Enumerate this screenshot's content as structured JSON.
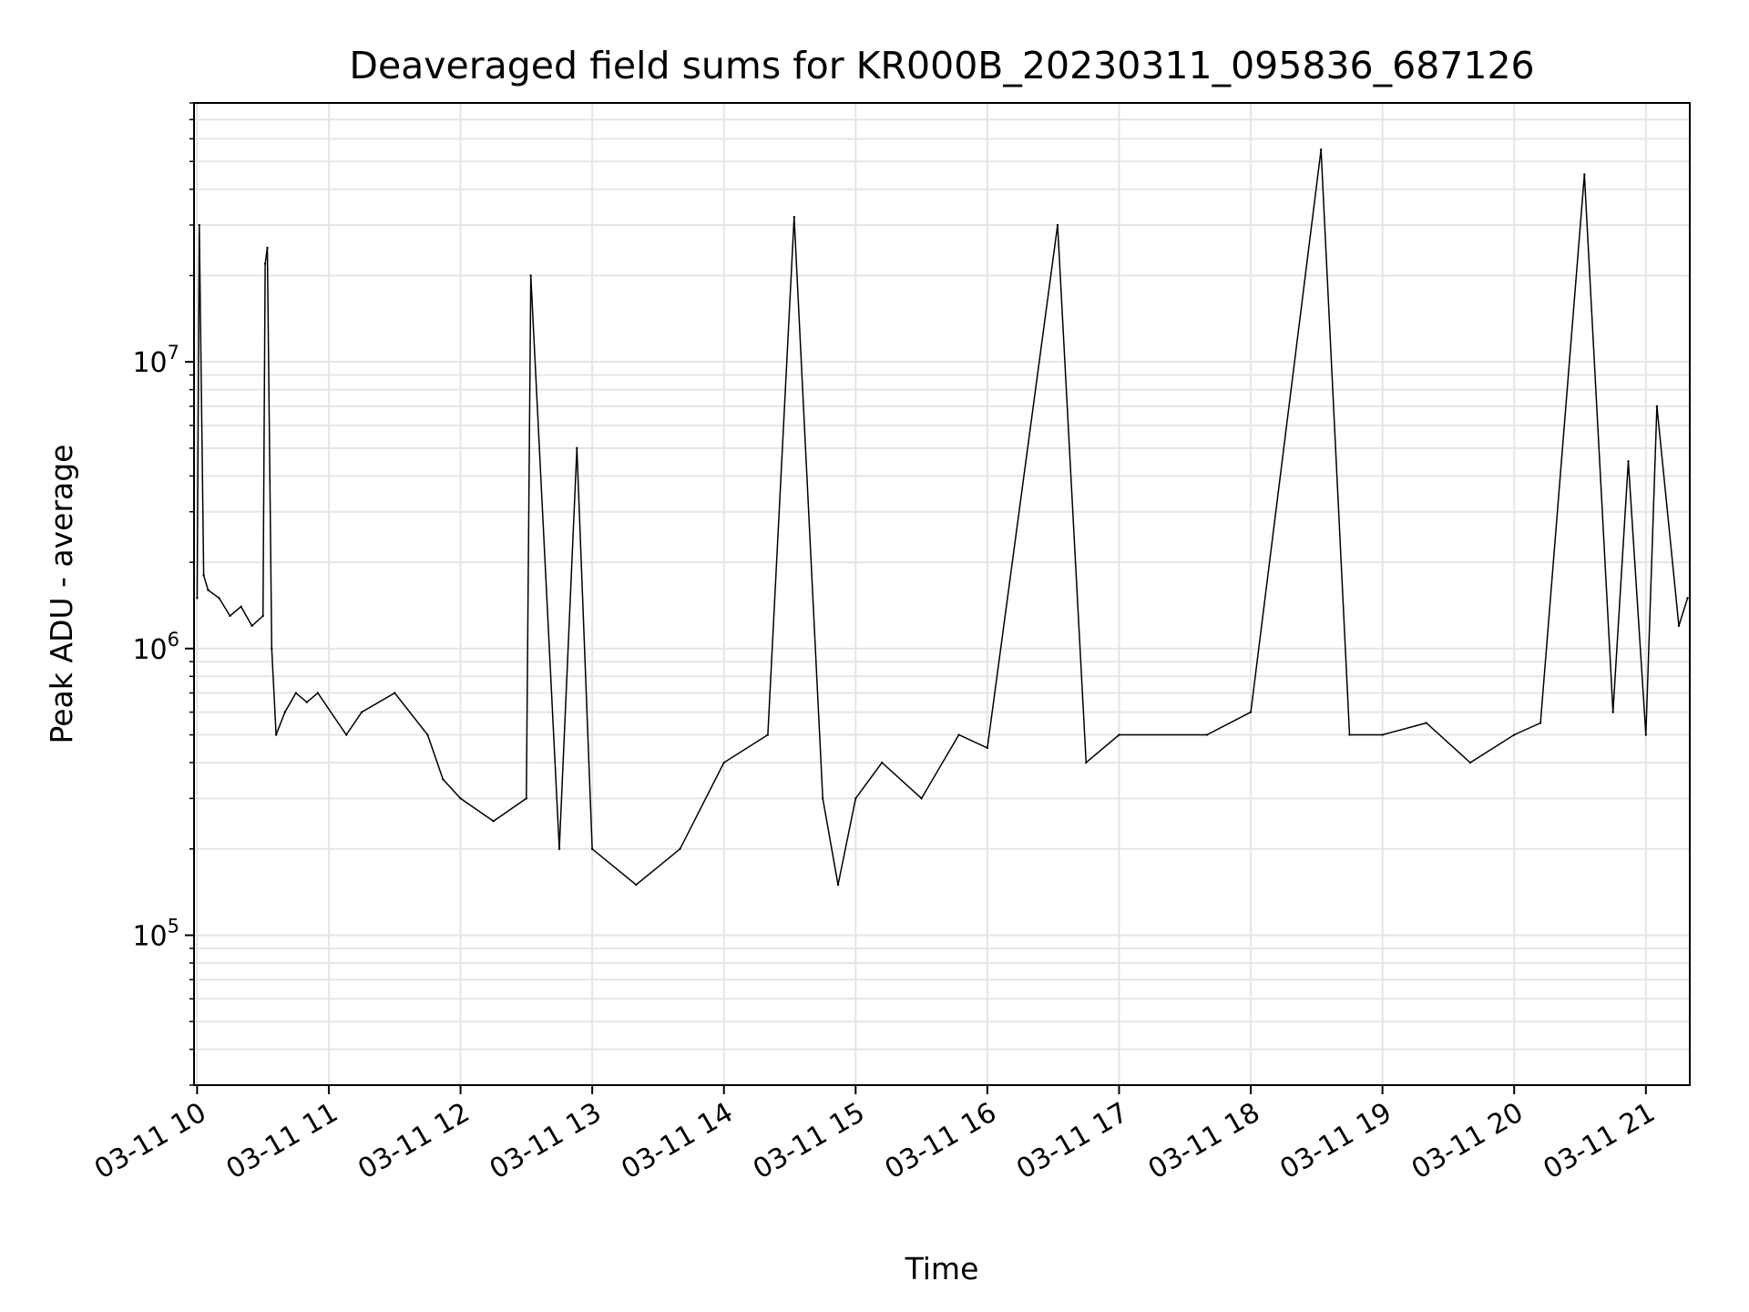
{
  "chart_data": {
    "type": "line",
    "title": "Deaveraged field sums for KR000B_20230311_095836_687126",
    "xlabel": "Time",
    "ylabel": "Peak ADU - average",
    "x_tick_labels": [
      "03-11 10",
      "03-11 11",
      "03-11 12",
      "03-11 13",
      "03-11 14",
      "03-11 15",
      "03-11 16",
      "03-11 17",
      "03-11 18",
      "03-11 19",
      "03-11 20",
      "03-11 21"
    ],
    "x_tick_hours": [
      10,
      11,
      12,
      13,
      14,
      15,
      16,
      17,
      18,
      19,
      20,
      21
    ],
    "xlim": [
      "2023-03-11T09:58:36",
      "2023-03-11T21:20:00"
    ],
    "y_scale": "log",
    "ylim": [
      30000,
      80000000
    ],
    "y_tick_labels": [
      {
        "base": "10",
        "exp": "5",
        "value": 100000
      },
      {
        "base": "10",
        "exp": "6",
        "value": 1000000
      },
      {
        "base": "10",
        "exp": "7",
        "value": 10000000
      }
    ],
    "grid": true,
    "line_color": "#000000",
    "grid_color": "#e5e5e5",
    "series": [
      {
        "times": [
          "2023-03-11T10:00:00",
          "2023-03-11T10:01:00",
          "2023-03-11T10:03:00",
          "2023-03-11T10:05:00",
          "2023-03-11T10:10:00",
          "2023-03-11T10:15:00",
          "2023-03-11T10:20:00",
          "2023-03-11T10:25:00",
          "2023-03-11T10:30:00",
          "2023-03-11T10:31:00",
          "2023-03-11T10:32:00",
          "2023-03-11T10:34:00",
          "2023-03-11T10:36:00",
          "2023-03-11T10:40:00",
          "2023-03-11T10:45:00",
          "2023-03-11T10:50:00",
          "2023-03-11T10:55:00",
          "2023-03-11T11:08:00",
          "2023-03-11T11:15:00",
          "2023-03-11T11:30:00",
          "2023-03-11T11:45:00",
          "2023-03-11T11:52:00",
          "2023-03-11T12:00:00",
          "2023-03-11T12:15:00",
          "2023-03-11T12:30:00",
          "2023-03-11T12:32:00",
          "2023-03-11T12:45:00",
          "2023-03-11T12:53:00",
          "2023-03-11T13:00:00",
          "2023-03-11T13:20:00",
          "2023-03-11T13:40:00",
          "2023-03-11T14:00:00",
          "2023-03-11T14:20:00",
          "2023-03-11T14:32:00",
          "2023-03-11T14:45:00",
          "2023-03-11T14:52:00",
          "2023-03-11T15:00:00",
          "2023-03-11T15:12:00",
          "2023-03-11T15:30:00",
          "2023-03-11T15:47:00",
          "2023-03-11T16:00:00",
          "2023-03-11T16:32:00",
          "2023-03-11T16:45:00",
          "2023-03-11T17:00:00",
          "2023-03-11T17:40:00",
          "2023-03-11T18:00:00",
          "2023-03-11T18:32:00",
          "2023-03-11T18:45:00",
          "2023-03-11T19:00:00",
          "2023-03-11T19:20:00",
          "2023-03-11T19:40:00",
          "2023-03-11T20:00:00",
          "2023-03-11T20:12:00",
          "2023-03-11T20:32:00",
          "2023-03-11T20:45:00",
          "2023-03-11T20:52:00",
          "2023-03-11T21:00:00",
          "2023-03-11T21:05:00",
          "2023-03-11T21:15:00",
          "2023-03-11T21:19:00"
        ],
        "values": [
          1500000,
          30000000,
          1800000,
          1600000,
          1500000,
          1300000,
          1400000,
          1200000,
          1300000,
          22000000,
          25000000,
          1000000,
          500000,
          600000,
          700000,
          650000,
          700000,
          500000,
          600000,
          700000,
          500000,
          350000,
          300000,
          250000,
          300000,
          20000000,
          200000,
          5000000,
          200000,
          150000,
          200000,
          400000,
          500000,
          32000000,
          300000,
          150000,
          300000,
          400000,
          300000,
          500000,
          450000,
          30000000,
          400000,
          500000,
          500000,
          600000,
          55000000,
          500000,
          500000,
          550000,
          400000,
          500000,
          550000,
          45000000,
          600000,
          4500000,
          500000,
          7000000,
          1200000,
          1500000
        ]
      }
    ]
  }
}
